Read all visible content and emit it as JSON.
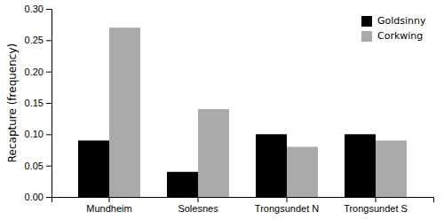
{
  "chart_data": {
    "type": "bar",
    "ylabel": "Recapture (frequency)",
    "categories": [
      "Mundheim",
      "Solesnes",
      "Trongsundet N",
      "Trongsundet S"
    ],
    "series": [
      {
        "name": "Goldsinny",
        "color": "#000000",
        "values": [
          0.09,
          0.04,
          0.1,
          0.1
        ]
      },
      {
        "name": "Corkwing",
        "color": "#aaaaaa",
        "values": [
          0.27,
          0.14,
          0.08,
          0.09
        ]
      }
    ],
    "ylim": [
      0.0,
      0.3
    ],
    "yticks": [
      {
        "value": 0.0,
        "label": "0.00"
      },
      {
        "value": 0.05,
        "label": "0.05"
      },
      {
        "value": 0.1,
        "label": "0.10"
      },
      {
        "value": 0.15,
        "label": "0.15"
      },
      {
        "value": 0.2,
        "label": "0.20"
      },
      {
        "value": 0.25,
        "label": "0.25"
      },
      {
        "value": 0.3,
        "label": "0.30"
      }
    ],
    "grid": false,
    "legend": "upper right"
  }
}
